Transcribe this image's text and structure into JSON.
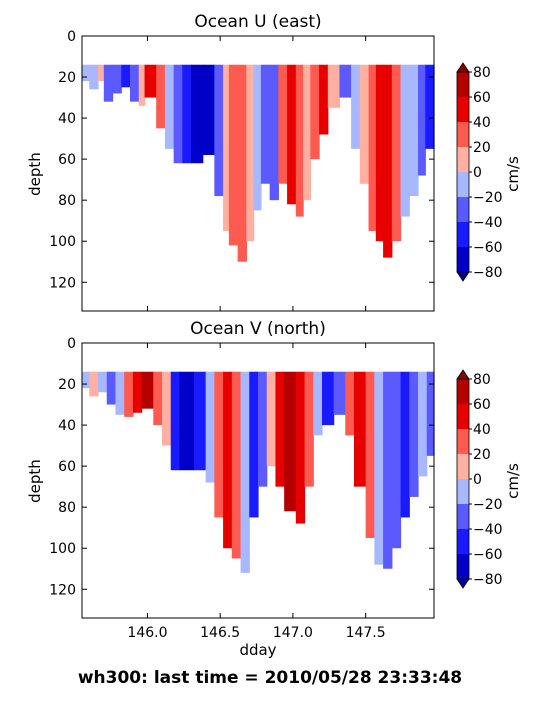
{
  "figure": {
    "suptitle": "wh300: last time = 2010/05/28 23:33:48"
  },
  "palette": {
    "levels": [
      -80,
      -60,
      -40,
      -20,
      0,
      20,
      40,
      60,
      80
    ],
    "colors": [
      "#0000c8",
      "#1a1aff",
      "#5a5aff",
      "#a8b8ff",
      "#ffffff",
      "#ffb0a0",
      "#ff5a50",
      "#e60000",
      "#b40000"
    ],
    "under_color": "#0000a0",
    "over_color": "#8c0000"
  },
  "chart_data": [
    {
      "type": "heatmap",
      "title": "Ocean U (east)",
      "xlabel": "",
      "ylabel": "depth",
      "colorbar_label": "cm/s",
      "xlim": [
        145.55,
        147.97
      ],
      "ylim": [
        134,
        0
      ],
      "yticks": [
        0,
        20,
        40,
        60,
        80,
        100,
        120
      ],
      "xticks": [
        146.0,
        146.5,
        147.0,
        147.5
      ],
      "xtick_labels": [],
      "colorbar_ticks": [
        "80",
        "60",
        "40",
        "20",
        "0",
        "−20",
        "−40",
        "−60",
        "−80"
      ],
      "columns": [
        {
          "x0": 145.55,
          "x1": 145.6,
          "v": -20,
          "d": 22
        },
        {
          "x0": 145.6,
          "x1": 145.66,
          "v": -10,
          "d": 26
        },
        {
          "x0": 145.66,
          "x1": 145.7,
          "v": 0,
          "d": 22
        },
        {
          "x0": 145.7,
          "x1": 145.76,
          "v": -25,
          "d": 32
        },
        {
          "x0": 145.76,
          "x1": 145.82,
          "v": -35,
          "d": 28
        },
        {
          "x0": 145.82,
          "x1": 145.88,
          "v": -50,
          "d": 25
        },
        {
          "x0": 145.88,
          "x1": 145.94,
          "v": -25,
          "d": 32
        },
        {
          "x0": 145.94,
          "x1": 145.98,
          "v": 10,
          "d": 34
        },
        {
          "x0": 145.98,
          "x1": 146.06,
          "v": 55,
          "d": 30
        },
        {
          "x0": 146.06,
          "x1": 146.12,
          "v": 25,
          "d": 45
        },
        {
          "x0": 146.12,
          "x1": 146.18,
          "v": -5,
          "d": 55
        },
        {
          "x0": 146.18,
          "x1": 146.24,
          "v": -30,
          "d": 62
        },
        {
          "x0": 146.24,
          "x1": 146.3,
          "v": -55,
          "d": 62
        },
        {
          "x0": 146.3,
          "x1": 146.38,
          "v": -75,
          "d": 62
        },
        {
          "x0": 146.38,
          "x1": 146.46,
          "v": -65,
          "d": 58
        },
        {
          "x0": 146.46,
          "x1": 146.52,
          "v": -30,
          "d": 78
        },
        {
          "x0": 146.52,
          "x1": 146.56,
          "v": 10,
          "d": 95
        },
        {
          "x0": 146.56,
          "x1": 146.62,
          "v": 30,
          "d": 102
        },
        {
          "x0": 146.62,
          "x1": 146.68,
          "v": 35,
          "d": 110
        },
        {
          "x0": 146.68,
          "x1": 146.73,
          "v": 5,
          "d": 100
        },
        {
          "x0": 146.73,
          "x1": 146.78,
          "v": -15,
          "d": 85
        },
        {
          "x0": 146.78,
          "x1": 146.84,
          "v": -40,
          "d": 72
        },
        {
          "x0": 146.84,
          "x1": 146.9,
          "v": -30,
          "d": 80
        },
        {
          "x0": 146.9,
          "x1": 146.96,
          "v": 25,
          "d": 72
        },
        {
          "x0": 146.96,
          "x1": 147.02,
          "v": 40,
          "d": 82
        },
        {
          "x0": 147.02,
          "x1": 147.07,
          "v": 35,
          "d": 88
        },
        {
          "x0": 147.07,
          "x1": 147.12,
          "v": 15,
          "d": 80
        },
        {
          "x0": 147.12,
          "x1": 147.18,
          "v": 30,
          "d": 60
        },
        {
          "x0": 147.18,
          "x1": 147.24,
          "v": 45,
          "d": 48
        },
        {
          "x0": 147.24,
          "x1": 147.32,
          "v": 10,
          "d": 35
        },
        {
          "x0": 147.32,
          "x1": 147.4,
          "v": -30,
          "d": 30
        },
        {
          "x0": 147.4,
          "x1": 147.46,
          "v": -10,
          "d": 55
        },
        {
          "x0": 147.46,
          "x1": 147.52,
          "v": 5,
          "d": 72
        },
        {
          "x0": 147.52,
          "x1": 147.57,
          "v": 25,
          "d": 95
        },
        {
          "x0": 147.57,
          "x1": 147.62,
          "v": 45,
          "d": 100
        },
        {
          "x0": 147.62,
          "x1": 147.68,
          "v": 55,
          "d": 108
        },
        {
          "x0": 147.68,
          "x1": 147.74,
          "v": 20,
          "d": 100
        },
        {
          "x0": 147.74,
          "x1": 147.8,
          "v": -5,
          "d": 88
        },
        {
          "x0": 147.8,
          "x1": 147.86,
          "v": -20,
          "d": 78
        },
        {
          "x0": 147.86,
          "x1": 147.91,
          "v": -40,
          "d": 68
        },
        {
          "x0": 147.91,
          "x1": 147.97,
          "v": -55,
          "d": 55
        }
      ]
    },
    {
      "type": "heatmap",
      "title": "Ocean V (north)",
      "xlabel": "dday",
      "ylabel": "depth",
      "colorbar_label": "cm/s",
      "xlim": [
        145.55,
        147.97
      ],
      "ylim": [
        134,
        0
      ],
      "yticks": [
        0,
        20,
        40,
        60,
        80,
        100,
        120
      ],
      "xticks": [
        146.0,
        146.5,
        147.0,
        147.5
      ],
      "xtick_labels": [
        "146.0",
        "146.5",
        "147.0",
        "147.5"
      ],
      "colorbar_ticks": [
        "80",
        "60",
        "40",
        "20",
        "0",
        "−20",
        "−40",
        "−60",
        "−80"
      ],
      "columns": [
        {
          "x0": 145.55,
          "x1": 145.6,
          "v": -20,
          "d": 22
        },
        {
          "x0": 145.6,
          "x1": 145.66,
          "v": 5,
          "d": 26
        },
        {
          "x0": 145.66,
          "x1": 145.72,
          "v": -15,
          "d": 24
        },
        {
          "x0": 145.72,
          "x1": 145.78,
          "v": -25,
          "d": 30
        },
        {
          "x0": 145.78,
          "x1": 145.84,
          "v": -5,
          "d": 35
        },
        {
          "x0": 145.84,
          "x1": 145.9,
          "v": 20,
          "d": 36
        },
        {
          "x0": 145.9,
          "x1": 145.96,
          "v": 45,
          "d": 34
        },
        {
          "x0": 145.96,
          "x1": 146.04,
          "v": 60,
          "d": 32
        },
        {
          "x0": 146.04,
          "x1": 146.1,
          "v": 35,
          "d": 40
        },
        {
          "x0": 146.1,
          "x1": 146.16,
          "v": 10,
          "d": 50
        },
        {
          "x0": 146.16,
          "x1": 146.22,
          "v": -45,
          "d": 62
        },
        {
          "x0": 146.22,
          "x1": 146.32,
          "v": -75,
          "d": 62
        },
        {
          "x0": 146.32,
          "x1": 146.4,
          "v": -55,
          "d": 62
        },
        {
          "x0": 146.4,
          "x1": 146.46,
          "v": -20,
          "d": 68
        },
        {
          "x0": 146.46,
          "x1": 146.52,
          "v": 35,
          "d": 85
        },
        {
          "x0": 146.52,
          "x1": 146.58,
          "v": 45,
          "d": 100
        },
        {
          "x0": 146.58,
          "x1": 146.64,
          "v": 30,
          "d": 105
        },
        {
          "x0": 146.64,
          "x1": 146.7,
          "v": -15,
          "d": 112
        },
        {
          "x0": 146.7,
          "x1": 146.76,
          "v": -50,
          "d": 85
        },
        {
          "x0": 146.76,
          "x1": 146.82,
          "v": -30,
          "d": 70
        },
        {
          "x0": 146.82,
          "x1": 146.88,
          "v": 5,
          "d": 60
        },
        {
          "x0": 146.88,
          "x1": 146.94,
          "v": 50,
          "d": 70
        },
        {
          "x0": 146.94,
          "x1": 147.02,
          "v": 75,
          "d": 82
        },
        {
          "x0": 147.02,
          "x1": 147.08,
          "v": 55,
          "d": 88
        },
        {
          "x0": 147.08,
          "x1": 147.14,
          "v": 20,
          "d": 70
        },
        {
          "x0": 147.14,
          "x1": 147.2,
          "v": -15,
          "d": 45
        },
        {
          "x0": 147.2,
          "x1": 147.28,
          "v": -55,
          "d": 40
        },
        {
          "x0": 147.28,
          "x1": 147.36,
          "v": -25,
          "d": 35
        },
        {
          "x0": 147.36,
          "x1": 147.42,
          "v": 30,
          "d": 45
        },
        {
          "x0": 147.42,
          "x1": 147.5,
          "v": 55,
          "d": 70
        },
        {
          "x0": 147.5,
          "x1": 147.56,
          "v": 35,
          "d": 95
        },
        {
          "x0": 147.56,
          "x1": 147.62,
          "v": -10,
          "d": 108
        },
        {
          "x0": 147.62,
          "x1": 147.68,
          "v": -40,
          "d": 110
        },
        {
          "x0": 147.68,
          "x1": 147.74,
          "v": -25,
          "d": 100
        },
        {
          "x0": 147.74,
          "x1": 147.8,
          "v": -45,
          "d": 85
        },
        {
          "x0": 147.8,
          "x1": 147.86,
          "v": -30,
          "d": 75
        },
        {
          "x0": 147.86,
          "x1": 147.92,
          "v": -10,
          "d": 65
        },
        {
          "x0": 147.92,
          "x1": 147.97,
          "v": -25,
          "d": 55
        }
      ]
    }
  ]
}
